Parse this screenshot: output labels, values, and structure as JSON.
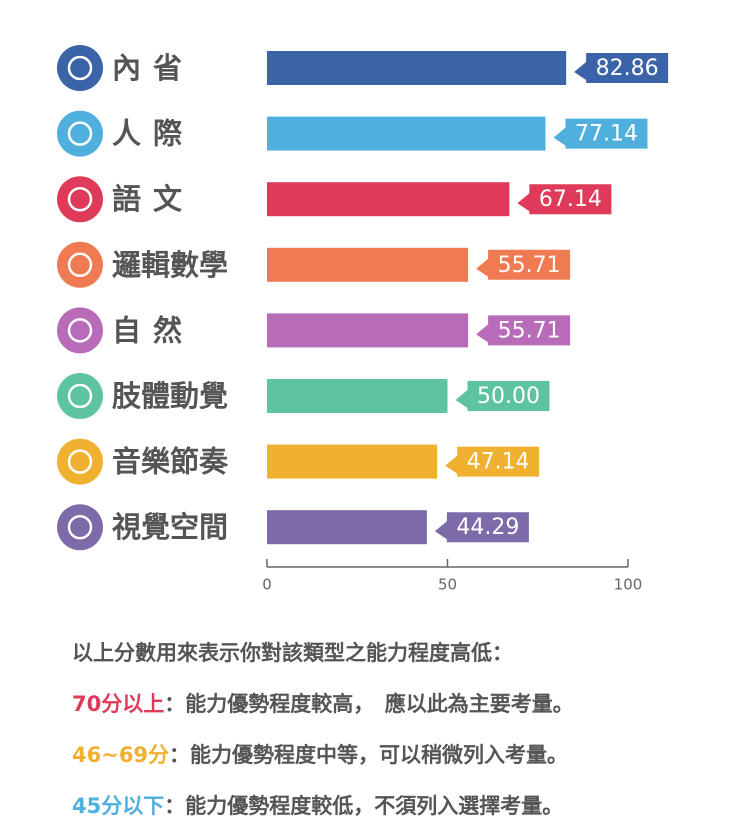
{
  "chart_data": {
    "type": "bar",
    "orientation": "horizontal",
    "categories": [
      "內省",
      "人際",
      "語文",
      "邏輯數學",
      "自然",
      "肢體動覺",
      "音樂節奏",
      "視覺空間"
    ],
    "values": [
      82.86,
      77.14,
      67.14,
      55.71,
      55.71,
      50,
      47.14,
      44.29
    ],
    "value_labels": [
      "82.86",
      "77.14",
      "67.14",
      "55.71",
      "55.71",
      "50.00",
      "47.14",
      "44.29"
    ],
    "colors": [
      "#3a63a8",
      "#4fb0de",
      "#e03a5a",
      "#f07a52",
      "#b86bb8",
      "#5ec4a0",
      "#f0b030",
      "#7d6aa8"
    ],
    "xlim": [
      0,
      100
    ],
    "xticks": [
      0,
      50,
      100
    ]
  },
  "notes": {
    "intro": "以上分數用來表示你對該類型之能力程度高低：",
    "items": [
      {
        "range": "70分以上",
        "color": "#e03a5a",
        "text": "：能力優勢程度較高，　應以此為主要考量。"
      },
      {
        "range": "46~69分",
        "color": "#f0b030",
        "text": "：能力優勢程度中等，可以稍微列入考量。"
      },
      {
        "range": "45分以下",
        "color": "#4fb0de",
        "text": "：能力優勢程度較低，不須列入選擇考量。"
      }
    ]
  }
}
